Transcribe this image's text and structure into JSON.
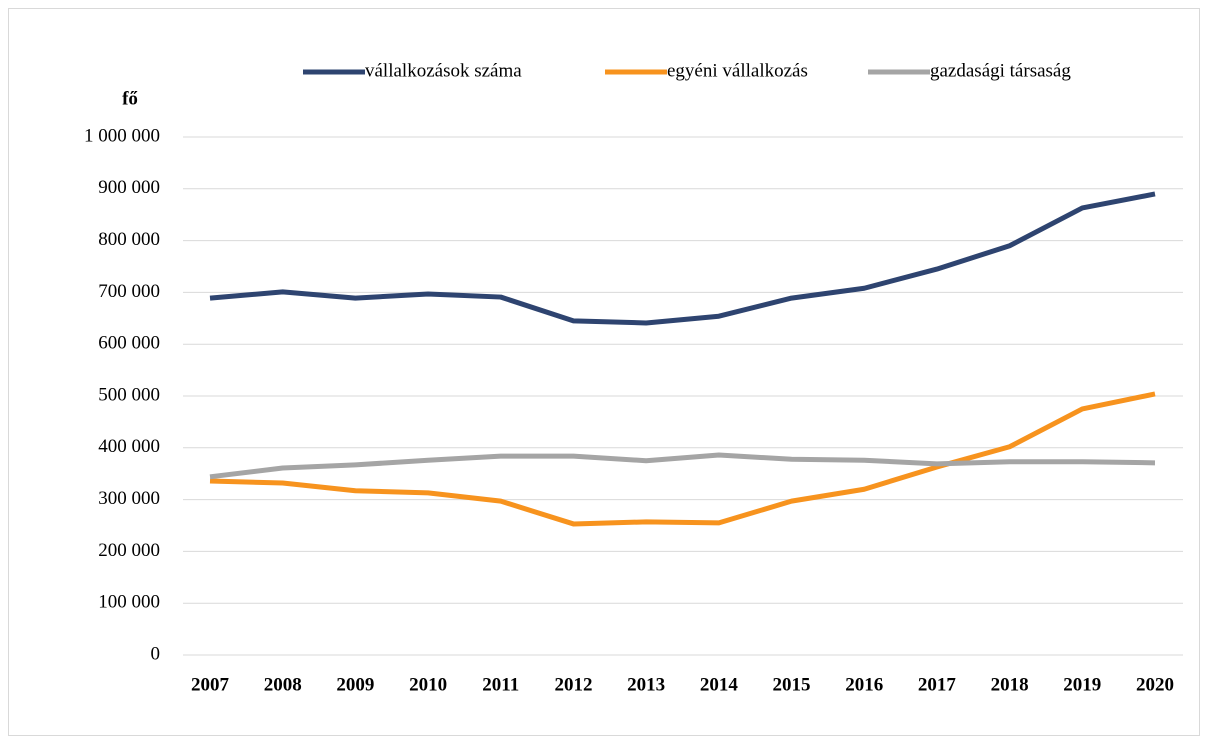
{
  "chart_data": {
    "type": "line",
    "y_label": "fő",
    "categories": [
      "2007",
      "2008",
      "2009",
      "2010",
      "2011",
      "2012",
      "2013",
      "2014",
      "2015",
      "2016",
      "2017",
      "2018",
      "2019",
      "2020"
    ],
    "series": [
      {
        "name": "vállalkozások száma",
        "color": "#2e4470",
        "values": [
          689000,
          701000,
          689000,
          697000,
          691000,
          645000,
          641000,
          654000,
          689000,
          708000,
          745000,
          790000,
          863000,
          890000
        ]
      },
      {
        "name": "egyéni vállalkozás",
        "color": "#f7931e",
        "values": [
          336000,
          332000,
          317000,
          313000,
          297000,
          253000,
          257000,
          255000,
          297000,
          320000,
          363000,
          402000,
          475000,
          504000
        ]
      },
      {
        "name": "gazdasági társaság",
        "color": "#a5a5a5",
        "values": [
          344000,
          361000,
          367000,
          376000,
          384000,
          384000,
          375000,
          386000,
          378000,
          376000,
          369000,
          373000,
          373000,
          371000
        ]
      }
    ],
    "ylim": [
      0,
      1000000
    ],
    "yticks": [
      0,
      {
        "value": 100000,
        "label": "100 000"
      },
      {
        "value": 200000,
        "label": "200 000"
      },
      {
        "value": 300000,
        "label": "300 000"
      },
      {
        "value": 400000,
        "label": "400 000"
      },
      {
        "value": 500000,
        "label": "500 000"
      },
      {
        "value": 600000,
        "label": "600 000"
      },
      {
        "value": 700000,
        "label": "700 000"
      },
      {
        "value": 800000,
        "label": "800 000"
      },
      {
        "value": 900000,
        "label": "900 000"
      },
      {
        "value": 1000000,
        "label": "1 000 000"
      }
    ],
    "grid": true,
    "legend": "top"
  }
}
